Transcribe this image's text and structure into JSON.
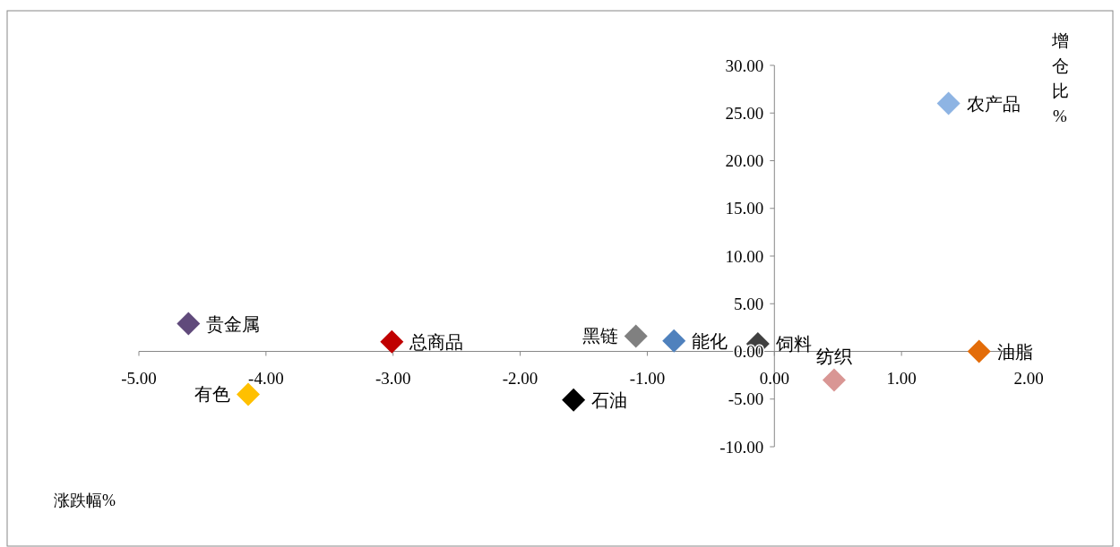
{
  "chart_data": {
    "type": "scatter",
    "xlabel": "涨跌幅%",
    "ylabel": "增仓比%",
    "xlim": [
      -5,
      2
    ],
    "ylim": [
      -10,
      30
    ],
    "xticks": [
      {
        "value": -5,
        "label": "-5.00"
      },
      {
        "value": -4,
        "label": "-4.00"
      },
      {
        "value": -3,
        "label": "-3.00"
      },
      {
        "value": -2,
        "label": "-2.00"
      },
      {
        "value": -1,
        "label": "-1.00"
      },
      {
        "value": 0,
        "label": "0.00"
      },
      {
        "value": 1,
        "label": "1.00"
      },
      {
        "value": 2,
        "label": "2.00"
      }
    ],
    "yticks": [
      {
        "value": -10,
        "label": "-10.00"
      },
      {
        "value": -5,
        "label": "-5.00"
      },
      {
        "value": 0,
        "label": "0.00"
      },
      {
        "value": 5,
        "label": "5.00"
      },
      {
        "value": 10,
        "label": "10.00"
      },
      {
        "value": 15,
        "label": "15.00"
      },
      {
        "value": 20,
        "label": "20.00"
      },
      {
        "value": 25,
        "label": "25.00"
      },
      {
        "value": 30,
        "label": "30.00"
      }
    ],
    "grid": false,
    "legend": false,
    "marker": "diamond",
    "series": [
      {
        "name": "贵金属",
        "color": "#604a7b",
        "x": [
          -4.61
        ],
        "values": [
          2.9
        ]
      },
      {
        "name": "总商品",
        "color": "#c00000",
        "x": [
          -3.01
        ],
        "values": [
          1.0
        ]
      },
      {
        "name": "有色",
        "color": "#ffc000",
        "x": [
          -4.14
        ],
        "values": [
          -4.5
        ]
      },
      {
        "name": "石油",
        "color": "#000000",
        "x": [
          -1.58
        ],
        "values": [
          -5.1
        ]
      },
      {
        "name": "黑链",
        "color": "#808080",
        "x": [
          -1.09
        ],
        "values": [
          1.6
        ]
      },
      {
        "name": "能化",
        "color": "#4f81bd",
        "x": [
          -0.79
        ],
        "values": [
          1.1
        ]
      },
      {
        "name": "饲料",
        "color": "#404040",
        "x": [
          -0.13
        ],
        "values": [
          0.8
        ]
      },
      {
        "name": "纺织",
        "color": "#d99694",
        "x": [
          0.47
        ],
        "values": [
          -3.0
        ]
      },
      {
        "name": "油脂",
        "color": "#e36c09",
        "x": [
          1.61
        ],
        "values": [
          0.0
        ]
      },
      {
        "name": "农产品",
        "color": "#8eb4e3",
        "x": [
          1.37
        ],
        "values": [
          26.0
        ]
      }
    ]
  }
}
